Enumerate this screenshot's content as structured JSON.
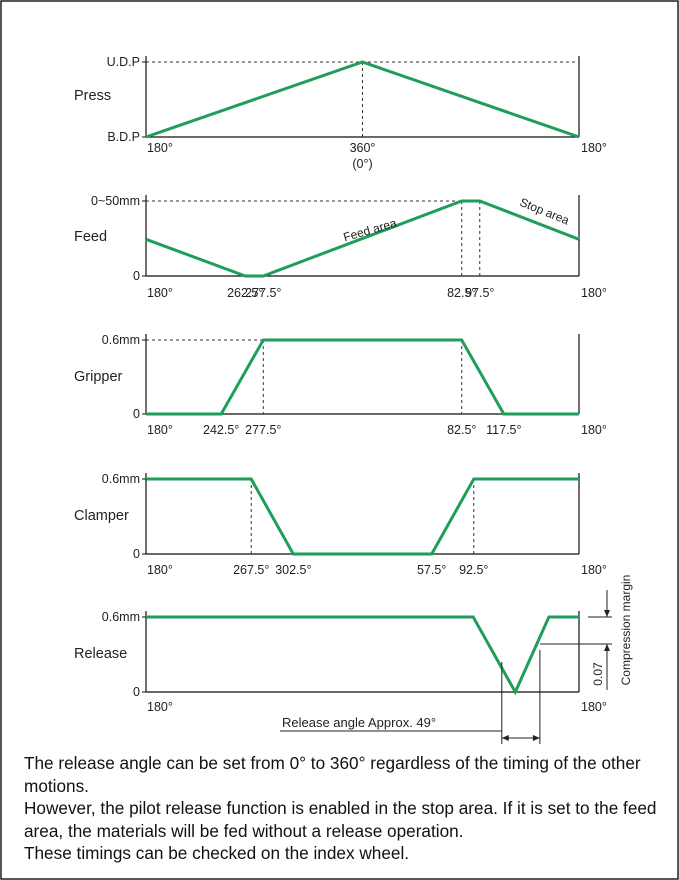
{
  "theme": {
    "curve_color": "#1f9e5a",
    "axis_color": "#111111",
    "guide_color": "#333333"
  },
  "panels": [
    {
      "key": "press",
      "name": "Press",
      "y_labels": [
        "U.D.P",
        "B.D.P"
      ],
      "x_labels": [
        {
          "text": "180°",
          "angle": 180
        },
        {
          "text": "360°",
          "angle": 360
        },
        {
          "text": "(0°)",
          "angle": 360
        },
        {
          "text": "180°",
          "angle": 540
        }
      ],
      "curve": [
        [
          180,
          0
        ],
        [
          360,
          1
        ],
        [
          540,
          0
        ]
      ],
      "area_labels": []
    },
    {
      "key": "feed",
      "name": "Feed",
      "y_labels": [
        "0~50mm",
        "0"
      ],
      "x_labels": [
        {
          "text": "180°",
          "angle": 180
        },
        {
          "text": "262.5°",
          "angle": 262.5
        },
        {
          "text": "277.5°",
          "angle": 277.5
        },
        {
          "text": "82.5°",
          "angle": 442.5
        },
        {
          "text": "97.5°",
          "angle": 457.5
        },
        {
          "text": "180°",
          "angle": 540
        }
      ],
      "curve": [
        [
          180,
          0.49
        ],
        [
          262.5,
          0
        ],
        [
          277.5,
          0
        ],
        [
          442.5,
          1
        ],
        [
          457.5,
          1
        ],
        [
          540,
          0.49
        ]
      ],
      "area_labels": [
        "Feed area",
        "Stop area"
      ]
    },
    {
      "key": "gripper",
      "name": "Gripper",
      "y_labels": [
        "0.6mm",
        "0"
      ],
      "x_labels": [
        {
          "text": "180°",
          "angle": 180
        },
        {
          "text": "242.5°",
          "angle": 242.5
        },
        {
          "text": "277.5°",
          "angle": 277.5
        },
        {
          "text": "82.5°",
          "angle": 442.5
        },
        {
          "text": "117.5°",
          "angle": 477.5
        },
        {
          "text": "180°",
          "angle": 540
        }
      ],
      "curve": [
        [
          180,
          0
        ],
        [
          242.5,
          0
        ],
        [
          277.5,
          1
        ],
        [
          442.5,
          1
        ],
        [
          477.5,
          0
        ],
        [
          540,
          0
        ]
      ],
      "area_labels": []
    },
    {
      "key": "clamper",
      "name": "Clamper",
      "y_labels": [
        "0.6mm",
        "0"
      ],
      "x_labels": [
        {
          "text": "180°",
          "angle": 180
        },
        {
          "text": "267.5°",
          "angle": 267.5
        },
        {
          "text": "302.5°",
          "angle": 302.5
        },
        {
          "text": "57.5°",
          "angle": 417.5
        },
        {
          "text": "92.5°",
          "angle": 452.5
        },
        {
          "text": "180°",
          "angle": 540
        }
      ],
      "curve": [
        [
          180,
          1
        ],
        [
          267.5,
          1
        ],
        [
          302.5,
          0
        ],
        [
          417.5,
          0
        ],
        [
          452.5,
          1
        ],
        [
          540,
          1
        ]
      ],
      "area_labels": []
    },
    {
      "key": "release",
      "name": "Release",
      "y_labels": [
        "0.6mm",
        "0"
      ],
      "x_labels": [
        {
          "text": "180°",
          "angle": 180
        },
        {
          "text": "180°",
          "angle": 540
        }
      ],
      "curve": [
        [
          180,
          1
        ],
        [
          452,
          1
        ],
        [
          487,
          0
        ],
        [
          515,
          1
        ],
        [
          540,
          1
        ]
      ],
      "area_labels": []
    }
  ],
  "release_annotations": {
    "angle_label": "Release angle Approx. 49°",
    "margin_value": "0.07",
    "margin_label": "Compression margin"
  },
  "caption": {
    "line1": "The release angle can be set from 0° to 360° regardless of the timing of the other motions.",
    "line2": "However, the pilot release function is enabled in the stop area. If it is set to the feed area, the materials will be fed without a release operation.",
    "line3": "These timings can be checked on the index wheel."
  }
}
